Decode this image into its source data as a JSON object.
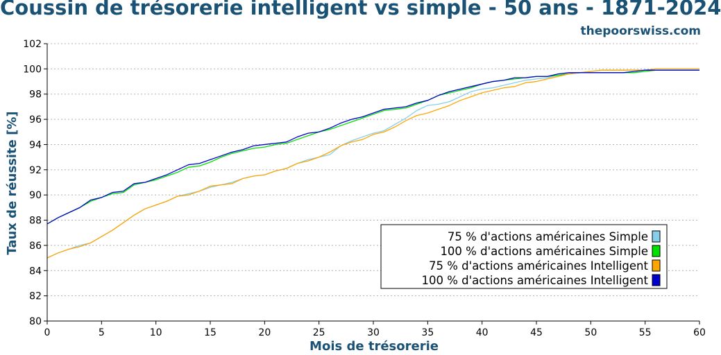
{
  "header": {
    "title": "Coussin de trésorerie intelligent vs simple - 50 ans - 1871-2024",
    "brand": "thepoorswiss.com"
  },
  "chart_data": {
    "type": "line",
    "title": "Coussin de trésorerie intelligent vs simple - 50 ans - 1871-2024",
    "xlabel": "Mois de trésorerie",
    "ylabel": "Taux de réussite [%]",
    "xlim": [
      0,
      60
    ],
    "ylim": [
      80,
      102
    ],
    "xticks": [
      0,
      5,
      10,
      15,
      20,
      25,
      30,
      35,
      40,
      45,
      50,
      55,
      60
    ],
    "yticks": [
      80,
      82,
      84,
      86,
      88,
      90,
      92,
      94,
      96,
      98,
      100,
      102
    ],
    "grid": true,
    "legend_position": "bottom-right",
    "x": [
      0,
      1,
      2,
      3,
      4,
      5,
      6,
      7,
      8,
      9,
      10,
      11,
      12,
      13,
      14,
      15,
      16,
      17,
      18,
      19,
      20,
      21,
      22,
      23,
      24,
      25,
      26,
      27,
      28,
      29,
      30,
      31,
      32,
      33,
      34,
      35,
      36,
      37,
      38,
      39,
      40,
      41,
      42,
      43,
      44,
      45,
      46,
      47,
      48,
      49,
      50,
      51,
      52,
      53,
      54,
      55,
      56,
      57,
      58,
      59,
      60
    ],
    "series": [
      {
        "name": "75 % d'actions américaines Simple",
        "color": "#87ceeb",
        "values": [
          85.0,
          85.4,
          85.7,
          86.0,
          86.2,
          86.7,
          87.2,
          87.8,
          88.4,
          88.9,
          89.2,
          89.5,
          89.9,
          90.1,
          90.3,
          90.6,
          90.8,
          91.0,
          91.3,
          91.5,
          91.6,
          91.9,
          92.1,
          92.5,
          92.8,
          93.0,
          93.2,
          93.9,
          94.3,
          94.6,
          94.9,
          95.1,
          95.6,
          96.1,
          96.7,
          97.1,
          97.2,
          97.4,
          97.8,
          98.2,
          98.4,
          98.5,
          98.7,
          98.9,
          99.1,
          99.2,
          99.3,
          99.5,
          99.6,
          99.7,
          99.8,
          99.9,
          99.9,
          99.9,
          99.9,
          99.9,
          99.9,
          99.9,
          99.9,
          99.9,
          99.9
        ]
      },
      {
        "name": "100 % d'actions américaines Simple",
        "color": "#00e000",
        "values": [
          87.7,
          88.2,
          88.6,
          89.0,
          89.5,
          89.8,
          90.1,
          90.2,
          90.8,
          91.0,
          91.2,
          91.5,
          91.8,
          92.2,
          92.3,
          92.6,
          93.0,
          93.3,
          93.5,
          93.7,
          93.8,
          94.0,
          94.1,
          94.4,
          94.7,
          95.0,
          95.2,
          95.5,
          95.8,
          96.1,
          96.4,
          96.7,
          96.8,
          96.9,
          97.2,
          97.5,
          97.9,
          98.1,
          98.3,
          98.5,
          98.8,
          99.0,
          99.1,
          99.2,
          99.3,
          99.4,
          99.4,
          99.5,
          99.6,
          99.7,
          99.7,
          99.7,
          99.7,
          99.7,
          99.7,
          99.8,
          99.9,
          99.9,
          99.9,
          99.9,
          99.9
        ]
      },
      {
        "name": "75 % d'actions américaines Intelligent",
        "color": "#ffa500",
        "values": [
          85.0,
          85.4,
          85.7,
          85.9,
          86.2,
          86.7,
          87.2,
          87.8,
          88.4,
          88.9,
          89.2,
          89.5,
          89.9,
          90.0,
          90.3,
          90.7,
          90.8,
          90.9,
          91.3,
          91.5,
          91.6,
          91.9,
          92.1,
          92.5,
          92.7,
          93.0,
          93.4,
          93.9,
          94.2,
          94.4,
          94.8,
          95.0,
          95.4,
          95.9,
          96.3,
          96.5,
          96.8,
          97.1,
          97.5,
          97.8,
          98.1,
          98.3,
          98.5,
          98.6,
          98.9,
          99.0,
          99.2,
          99.4,
          99.6,
          99.7,
          99.8,
          99.9,
          99.9,
          99.9,
          99.9,
          99.9,
          100.0,
          100.0,
          100.0,
          100.0,
          100.0
        ]
      },
      {
        "name": "100 % d'actions américaines Intelligent",
        "color": "#0000cd",
        "values": [
          87.7,
          88.2,
          88.6,
          89.0,
          89.6,
          89.8,
          90.2,
          90.3,
          90.9,
          91.0,
          91.3,
          91.6,
          92.0,
          92.4,
          92.5,
          92.8,
          93.1,
          93.4,
          93.6,
          93.9,
          94.0,
          94.1,
          94.2,
          94.6,
          94.9,
          95.0,
          95.3,
          95.7,
          96.0,
          96.2,
          96.5,
          96.8,
          96.9,
          97.0,
          97.3,
          97.5,
          97.9,
          98.2,
          98.4,
          98.6,
          98.8,
          99.0,
          99.1,
          99.3,
          99.3,
          99.4,
          99.4,
          99.6,
          99.7,
          99.7,
          99.7,
          99.7,
          99.7,
          99.7,
          99.8,
          99.9,
          99.9,
          99.9,
          99.9,
          99.9,
          99.9
        ]
      }
    ]
  }
}
